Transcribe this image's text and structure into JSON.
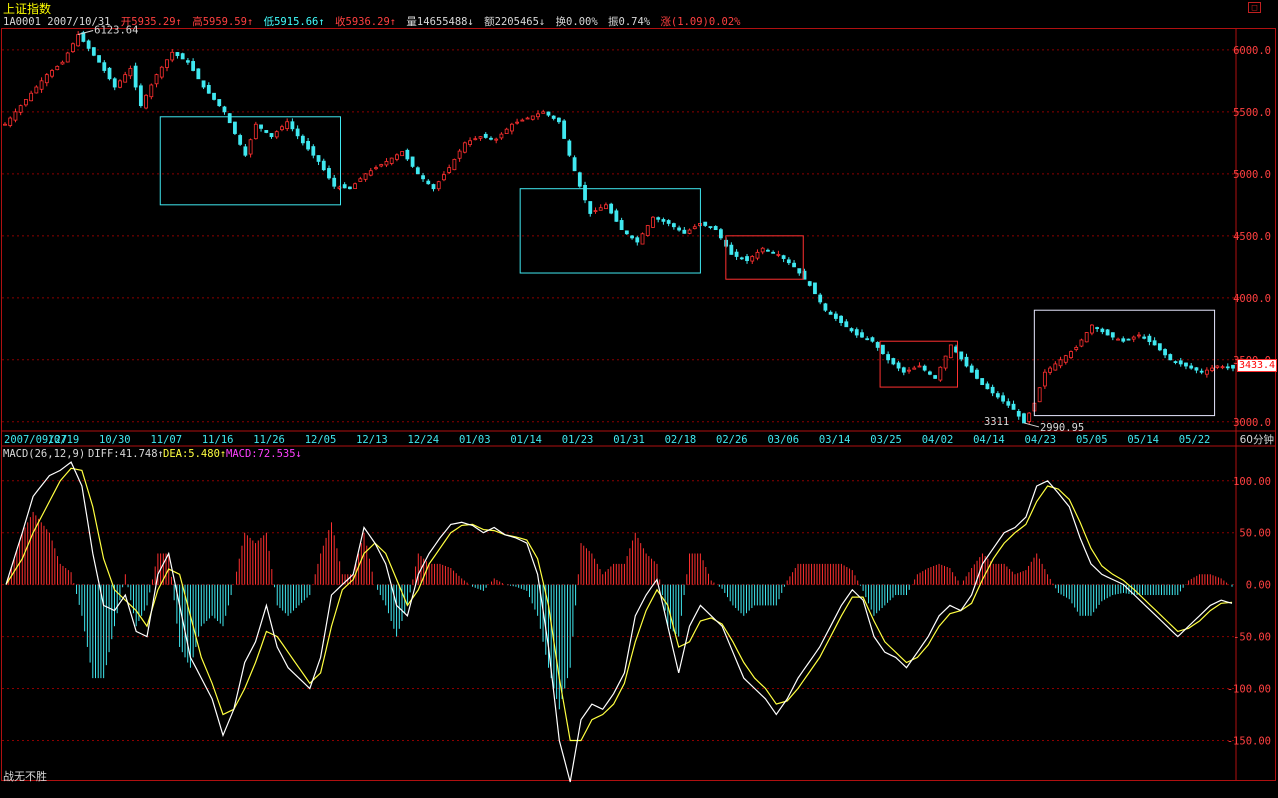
{
  "window": {
    "title": "上证指数",
    "restore_button": "□"
  },
  "info_bar": {
    "code_date": "1A0001 2007/10/31",
    "open": "开5935.29↑",
    "high": "高5959.59↑",
    "low": "低5915.66↑",
    "close": "收5936.29↑",
    "volume": "量14655488↓",
    "amount": "额2205465↓",
    "turnover": "换0.00%",
    "amplitude": "振0.74%",
    "change": "涨(1.09)0.02%"
  },
  "macd_bar": {
    "label": "MACD(26,12,9)",
    "diff": "DIFF:41.748↑",
    "dea": "DEA:5.480↑",
    "macd": "MACD:72.535↓"
  },
  "footer": "战无不胜",
  "period": "60分钟",
  "last_price": "3433.4",
  "colors": {
    "up": "#ff3030",
    "down": "#40e8f0",
    "grid": "#8b0000",
    "diff_line": "#ffffff",
    "dea_line": "#ffff40"
  },
  "chart_data": [
    {
      "type": "candlestick",
      "title": "上证指数",
      "y_ticks": [
        "6000.0",
        "5500.0",
        "5000.0",
        "4500.0",
        "4000.0",
        "3500.0",
        "3000.0"
      ],
      "ylim": [
        2950,
        6160
      ],
      "x_tick_labels": [
        "2007/09/27",
        "10/19",
        "10/30",
        "11/07",
        "11/16",
        "11/26",
        "12/05",
        "12/13",
        "12/24",
        "01/03",
        "01/14",
        "01/23",
        "01/31",
        "02/18",
        "02/26",
        "03/06",
        "03/14",
        "03/25",
        "04/02",
        "04/14",
        "04/23",
        "05/05",
        "05/14",
        "05/22"
      ],
      "annotations": {
        "max_label": "6123.64",
        "max_value": 6123.64,
        "min_label": "2990.95",
        "min_value": 2990.95,
        "support_label": "3311"
      },
      "price_path": [
        [
          0,
          5400
        ],
        [
          5,
          5650
        ],
        [
          8,
          5800
        ],
        [
          11,
          5900
        ],
        [
          14,
          6123.64
        ],
        [
          18,
          5900
        ],
        [
          21,
          5700
        ],
        [
          24,
          5850
        ],
        [
          26,
          5550
        ],
        [
          29,
          5800
        ],
        [
          32,
          5980
        ],
        [
          35,
          5900
        ],
        [
          38,
          5700
        ],
        [
          42,
          5500
        ],
        [
          46,
          5150
        ],
        [
          48,
          5400
        ],
        [
          51,
          5300
        ],
        [
          54,
          5420
        ],
        [
          57,
          5250
        ],
        [
          60,
          5100
        ],
        [
          63,
          4900
        ],
        [
          66,
          4880
        ],
        [
          69,
          5000
        ],
        [
          73,
          5100
        ],
        [
          76,
          5180
        ],
        [
          79,
          5000
        ],
        [
          82,
          4880
        ],
        [
          85,
          5050
        ],
        [
          88,
          5250
        ],
        [
          91,
          5300
        ],
        [
          94,
          5280
        ],
        [
          97,
          5400
        ],
        [
          100,
          5450
        ],
        [
          103,
          5500
        ],
        [
          106,
          5420
        ],
        [
          108,
          5150
        ],
        [
          110,
          4900
        ],
        [
          112,
          4680
        ],
        [
          115,
          4750
        ],
        [
          118,
          4550
        ],
        [
          121,
          4450
        ],
        [
          124,
          4650
        ],
        [
          127,
          4600
        ],
        [
          130,
          4520
        ],
        [
          133,
          4600
        ],
        [
          136,
          4550
        ],
        [
          139,
          4350
        ],
        [
          142,
          4300
        ],
        [
          145,
          4400
        ],
        [
          148,
          4350
        ],
        [
          151,
          4250
        ],
        [
          154,
          4100
        ],
        [
          157,
          3900
        ],
        [
          160,
          3800
        ],
        [
          163,
          3700
        ],
        [
          166,
          3650
        ],
        [
          169,
          3500
        ],
        [
          172,
          3400
        ],
        [
          175,
          3450
        ],
        [
          178,
          3350
        ],
        [
          181,
          3620
        ],
        [
          184,
          3450
        ],
        [
          187,
          3300
        ],
        [
          190,
          3200
        ],
        [
          193,
          3100
        ],
        [
          195,
          2990.95
        ],
        [
          197,
          3150
        ],
        [
          199,
          3400
        ],
        [
          202,
          3500
        ],
        [
          205,
          3600
        ],
        [
          208,
          3780
        ],
        [
          211,
          3700
        ],
        [
          214,
          3650
        ],
        [
          217,
          3700
        ],
        [
          220,
          3620
        ],
        [
          223,
          3500
        ],
        [
          226,
          3450
        ],
        [
          229,
          3400
        ],
        [
          232,
          3450
        ],
        [
          235,
          3433
        ]
      ],
      "highlight_boxes": [
        {
          "color": "cyan",
          "from": "11/07",
          "to": "12/05",
          "low": 4750,
          "high": 5460
        },
        {
          "color": "cyan",
          "from": "01/14",
          "to": "02/18",
          "low": 4200,
          "high": 4880
        },
        {
          "color": "red",
          "from": "02/26",
          "to": "03/06",
          "low": 4150,
          "high": 4500
        },
        {
          "color": "red",
          "from": "03/25",
          "to": "04/02",
          "low": 3280,
          "high": 3650
        },
        {
          "color": "white",
          "from": "04/23",
          "to": "05/22",
          "low": 3050,
          "high": 3900
        }
      ]
    },
    {
      "type": "macd",
      "title": "MACD(26,12,9)",
      "y_ticks": [
        "100.00",
        "50.00",
        "0.00",
        "-50.00",
        "-100.00",
        "-150.00"
      ],
      "ylim": [
        -190,
        120
      ],
      "diff": [
        [
          0,
          0
        ],
        [
          3,
          50
        ],
        [
          5,
          85
        ],
        [
          8,
          105
        ],
        [
          10,
          110
        ],
        [
          12,
          118
        ],
        [
          14,
          95
        ],
        [
          16,
          30
        ],
        [
          18,
          -20
        ],
        [
          20,
          -25
        ],
        [
          22,
          -10
        ],
        [
          24,
          -45
        ],
        [
          26,
          -50
        ],
        [
          28,
          10
        ],
        [
          30,
          30
        ],
        [
          32,
          -20
        ],
        [
          34,
          -70
        ],
        [
          36,
          -90
        ],
        [
          38,
          -110
        ],
        [
          40,
          -145
        ],
        [
          42,
          -120
        ],
        [
          44,
          -75
        ],
        [
          46,
          -55
        ],
        [
          48,
          -20
        ],
        [
          50,
          -60
        ],
        [
          52,
          -80
        ],
        [
          54,
          -90
        ],
        [
          56,
          -100
        ],
        [
          58,
          -70
        ],
        [
          60,
          -10
        ],
        [
          62,
          0
        ],
        [
          64,
          10
        ],
        [
          66,
          55
        ],
        [
          68,
          40
        ],
        [
          70,
          20
        ],
        [
          72,
          -20
        ],
        [
          74,
          -30
        ],
        [
          76,
          10
        ],
        [
          78,
          30
        ],
        [
          80,
          45
        ],
        [
          82,
          58
        ],
        [
          84,
          60
        ],
        [
          86,
          57
        ],
        [
          88,
          50
        ],
        [
          90,
          55
        ],
        [
          92,
          48
        ],
        [
          94,
          45
        ],
        [
          96,
          40
        ],
        [
          98,
          10
        ],
        [
          100,
          -60
        ],
        [
          102,
          -150
        ],
        [
          104,
          -190
        ],
        [
          106,
          -130
        ],
        [
          108,
          -115
        ],
        [
          110,
          -120
        ],
        [
          112,
          -105
        ],
        [
          114,
          -85
        ],
        [
          116,
          -30
        ],
        [
          118,
          -10
        ],
        [
          120,
          5
        ],
        [
          122,
          -40
        ],
        [
          124,
          -85
        ],
        [
          126,
          -40
        ],
        [
          128,
          -20
        ],
        [
          130,
          -30
        ],
        [
          132,
          -40
        ],
        [
          134,
          -65
        ],
        [
          136,
          -90
        ],
        [
          138,
          -100
        ],
        [
          140,
          -110
        ],
        [
          142,
          -125
        ],
        [
          144,
          -110
        ],
        [
          146,
          -90
        ],
        [
          148,
          -75
        ],
        [
          150,
          -60
        ],
        [
          152,
          -40
        ],
        [
          154,
          -20
        ],
        [
          156,
          -5
        ],
        [
          158,
          -15
        ],
        [
          160,
          -50
        ],
        [
          162,
          -65
        ],
        [
          164,
          -70
        ],
        [
          166,
          -80
        ],
        [
          168,
          -65
        ],
        [
          170,
          -50
        ],
        [
          172,
          -30
        ],
        [
          174,
          -20
        ],
        [
          176,
          -25
        ],
        [
          178,
          -10
        ],
        [
          180,
          20
        ],
        [
          182,
          35
        ],
        [
          184,
          50
        ],
        [
          186,
          55
        ],
        [
          188,
          65
        ],
        [
          190,
          95
        ],
        [
          192,
          100
        ],
        [
          194,
          88
        ],
        [
          196,
          75
        ],
        [
          198,
          45
        ],
        [
          200,
          20
        ],
        [
          202,
          10
        ],
        [
          204,
          5
        ],
        [
          206,
          0
        ],
        [
          208,
          -10
        ],
        [
          210,
          -20
        ],
        [
          212,
          -30
        ],
        [
          214,
          -40
        ],
        [
          216,
          -50
        ],
        [
          218,
          -40
        ],
        [
          220,
          -30
        ],
        [
          222,
          -20
        ],
        [
          224,
          -15
        ],
        [
          226,
          -18
        ]
      ],
      "dea": [
        [
          0,
          0
        ],
        [
          3,
          25
        ],
        [
          5,
          50
        ],
        [
          8,
          80
        ],
        [
          10,
          100
        ],
        [
          12,
          112
        ],
        [
          14,
          110
        ],
        [
          16,
          75
        ],
        [
          18,
          25
        ],
        [
          20,
          -5
        ],
        [
          22,
          -15
        ],
        [
          24,
          -25
        ],
        [
          26,
          -40
        ],
        [
          28,
          -5
        ],
        [
          30,
          15
        ],
        [
          32,
          10
        ],
        [
          34,
          -30
        ],
        [
          36,
          -70
        ],
        [
          38,
          -95
        ],
        [
          40,
          -125
        ],
        [
          42,
          -120
        ],
        [
          44,
          -100
        ],
        [
          46,
          -75
        ],
        [
          48,
          -45
        ],
        [
          50,
          -50
        ],
        [
          52,
          -65
        ],
        [
          54,
          -80
        ],
        [
          56,
          -95
        ],
        [
          58,
          -85
        ],
        [
          60,
          -40
        ],
        [
          62,
          -5
        ],
        [
          64,
          5
        ],
        [
          66,
          30
        ],
        [
          68,
          40
        ],
        [
          70,
          30
        ],
        [
          72,
          5
        ],
        [
          74,
          -20
        ],
        [
          76,
          -5
        ],
        [
          78,
          20
        ],
        [
          80,
          35
        ],
        [
          82,
          50
        ],
        [
          84,
          57
        ],
        [
          86,
          58
        ],
        [
          88,
          53
        ],
        [
          90,
          52
        ],
        [
          92,
          48
        ],
        [
          94,
          46
        ],
        [
          96,
          43
        ],
        [
          98,
          25
        ],
        [
          100,
          -20
        ],
        [
          102,
          -90
        ],
        [
          104,
          -150
        ],
        [
          106,
          -150
        ],
        [
          108,
          -130
        ],
        [
          110,
          -125
        ],
        [
          112,
          -115
        ],
        [
          114,
          -95
        ],
        [
          116,
          -55
        ],
        [
          118,
          -25
        ],
        [
          120,
          -5
        ],
        [
          122,
          -20
        ],
        [
          124,
          -60
        ],
        [
          126,
          -55
        ],
        [
          128,
          -35
        ],
        [
          130,
          -32
        ],
        [
          132,
          -38
        ],
        [
          134,
          -55
        ],
        [
          136,
          -75
        ],
        [
          138,
          -90
        ],
        [
          140,
          -100
        ],
        [
          142,
          -115
        ],
        [
          144,
          -112
        ],
        [
          146,
          -100
        ],
        [
          148,
          -85
        ],
        [
          150,
          -70
        ],
        [
          152,
          -50
        ],
        [
          154,
          -30
        ],
        [
          156,
          -12
        ],
        [
          158,
          -12
        ],
        [
          160,
          -35
        ],
        [
          162,
          -55
        ],
        [
          164,
          -65
        ],
        [
          166,
          -75
        ],
        [
          168,
          -70
        ],
        [
          170,
          -58
        ],
        [
          172,
          -40
        ],
        [
          174,
          -28
        ],
        [
          176,
          -25
        ],
        [
          178,
          -18
        ],
        [
          180,
          5
        ],
        [
          182,
          25
        ],
        [
          184,
          40
        ],
        [
          186,
          50
        ],
        [
          188,
          58
        ],
        [
          190,
          80
        ],
        [
          192,
          95
        ],
        [
          194,
          92
        ],
        [
          196,
          82
        ],
        [
          198,
          60
        ],
        [
          200,
          35
        ],
        [
          202,
          18
        ],
        [
          204,
          10
        ],
        [
          206,
          4
        ],
        [
          208,
          -5
        ],
        [
          210,
          -15
        ],
        [
          212,
          -25
        ],
        [
          214,
          -35
        ],
        [
          216,
          -45
        ],
        [
          218,
          -42
        ],
        [
          220,
          -35
        ],
        [
          222,
          -25
        ],
        [
          224,
          -18
        ],
        [
          226,
          -17
        ]
      ]
    }
  ]
}
